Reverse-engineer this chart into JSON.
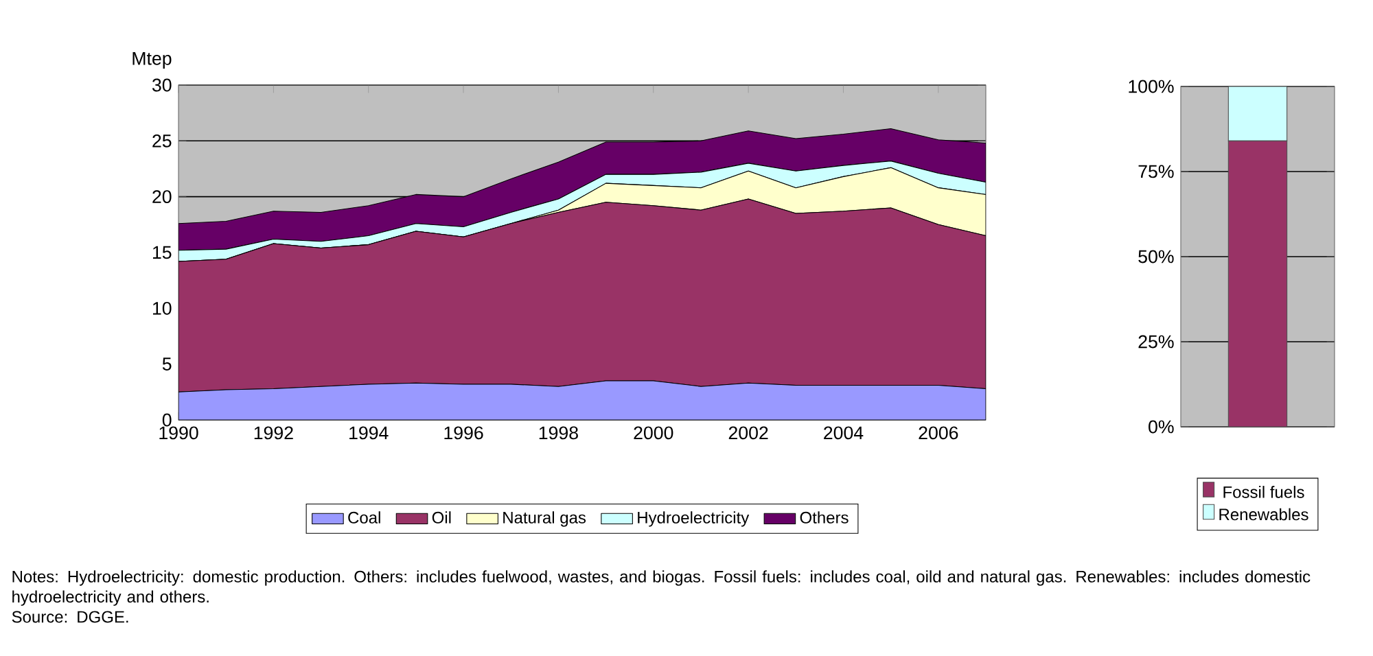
{
  "chart_data": [
    {
      "type": "area",
      "stacked": true,
      "ylabel": "Mtep",
      "x": [
        1990,
        1991,
        1992,
        1993,
        1994,
        1995,
        1996,
        1997,
        1998,
        1999,
        2000,
        2001,
        2002,
        2003,
        2004,
        2005,
        2006,
        2007
      ],
      "series": [
        {
          "name": "Coal",
          "color": "#9999ff",
          "values": [
            2.5,
            2.7,
            2.8,
            3.0,
            3.2,
            3.3,
            3.2,
            3.2,
            3.0,
            3.5,
            3.5,
            3.0,
            3.3,
            3.1,
            3.1,
            3.1,
            3.1,
            2.8
          ]
        },
        {
          "name": "Oil",
          "color": "#993366",
          "values": [
            11.7,
            11.7,
            13.0,
            12.4,
            12.5,
            13.6,
            13.2,
            14.4,
            15.6,
            16.0,
            15.7,
            15.8,
            16.5,
            15.4,
            15.6,
            15.9,
            14.4,
            13.7
          ]
        },
        {
          "name": "Natural gas",
          "color": "#ffffcc",
          "values": [
            0,
            0,
            0,
            0,
            0,
            0,
            0,
            0,
            0.2,
            1.7,
            1.8,
            2.0,
            2.5,
            2.3,
            3.1,
            3.6,
            3.3,
            3.7
          ]
        },
        {
          "name": "Hydroelectricity",
          "color": "#ccffff",
          "values": [
            1.0,
            0.9,
            0.4,
            0.6,
            0.8,
            0.7,
            0.9,
            1.0,
            1.0,
            0.8,
            1.0,
            1.4,
            0.7,
            1.5,
            1.0,
            0.6,
            1.3,
            1.1
          ]
        },
        {
          "name": "Others",
          "color": "#660066",
          "values": [
            2.4,
            2.5,
            2.5,
            2.6,
            2.7,
            2.6,
            2.7,
            3.0,
            3.3,
            2.9,
            2.9,
            2.8,
            2.9,
            2.9,
            2.8,
            2.9,
            3.0,
            3.5
          ]
        }
      ],
      "xlim": [
        1990,
        2007
      ],
      "xticks": [
        1990,
        1992,
        1994,
        1996,
        1998,
        2000,
        2002,
        2004,
        2006
      ],
      "ylim": [
        0,
        30
      ],
      "yticks": [
        0,
        5,
        10,
        15,
        20,
        25,
        30
      ],
      "grid": "y",
      "legend": "bottom",
      "annotations": [
        "Notes: Hydroelectricity: domestic production. Others: includes fuelwood, wastes, and biogas. Fossil fuels: includes coal, oild and natural gas. Renewables: includes domestic hydroelectricity and others.",
        "Source: DGGE."
      ]
    },
    {
      "type": "bar",
      "stacked": true,
      "categories": [
        null
      ],
      "series": [
        {
          "name": "Fossil fuels",
          "color": "#993366",
          "values": [
            84
          ]
        },
        {
          "name": "Renewables",
          "color": "#ccffff",
          "values": [
            16
          ]
        }
      ],
      "ylim": [
        0,
        100
      ],
      "yticks": [
        {
          "value": 0,
          "label": "0%"
        },
        {
          "value": 25,
          "label": "25%"
        },
        {
          "value": 50,
          "label": "50%"
        },
        {
          "value": 75,
          "label": "75%"
        },
        {
          "value": 100,
          "label": "100%"
        }
      ],
      "grid": "y",
      "legend": "bottom"
    }
  ]
}
